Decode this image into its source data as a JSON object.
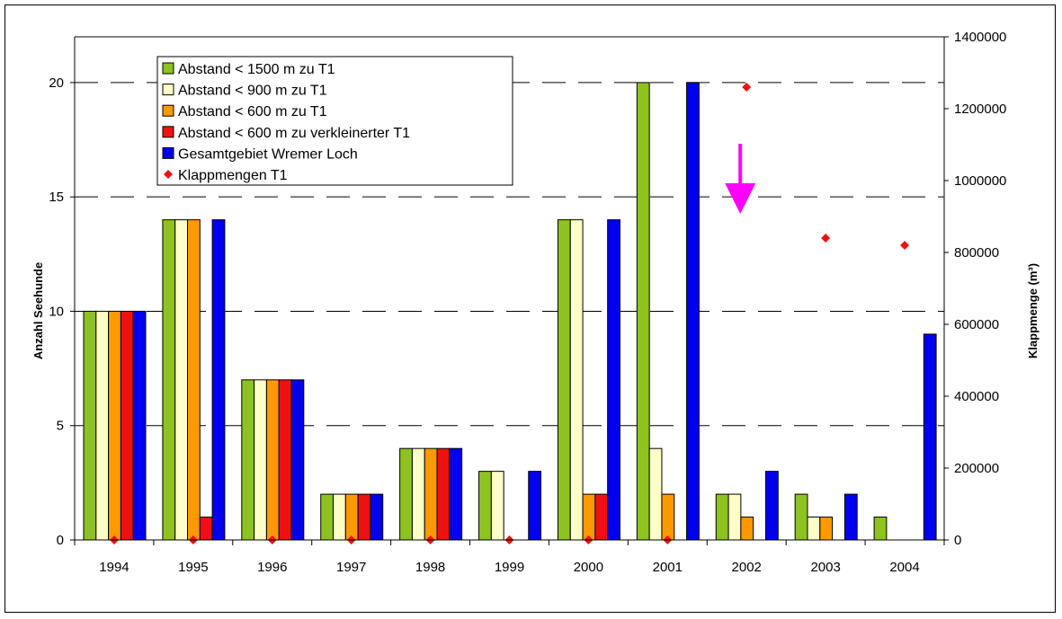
{
  "chart_data": {
    "type": "bar",
    "categories": [
      "1994",
      "1995",
      "1996",
      "1997",
      "1998",
      "1999",
      "2000",
      "2001",
      "2002",
      "2003",
      "2004"
    ],
    "series": [
      {
        "name": "Abstand < 1500 m zu T1",
        "color": "#8dc21f",
        "axis": "left",
        "kind": "bar",
        "values": [
          10,
          14,
          7,
          2,
          4,
          3,
          14,
          20,
          2,
          2,
          1
        ]
      },
      {
        "name": "Abstand < 900 m zu T1",
        "color": "#ffffc8",
        "axis": "left",
        "kind": "bar",
        "values": [
          10,
          14,
          7,
          2,
          4,
          3,
          14,
          4,
          2,
          1,
          0
        ]
      },
      {
        "name": "Abstand < 600 m zu T1",
        "color": "#ff9900",
        "axis": "left",
        "kind": "bar",
        "values": [
          10,
          14,
          7,
          2,
          4,
          0,
          2,
          2,
          1,
          1,
          0
        ]
      },
      {
        "name": "Abstand < 600 m zu verkleinerter T1",
        "color": "#ee1111",
        "axis": "left",
        "kind": "bar",
        "values": [
          10,
          1,
          7,
          2,
          4,
          0,
          2,
          0,
          0,
          0,
          0
        ]
      },
      {
        "name": "Gesamtgebiet Wremer Loch",
        "color": "#0000ee",
        "axis": "left",
        "kind": "bar",
        "values": [
          10,
          14,
          7,
          2,
          4,
          3,
          14,
          20,
          3,
          2,
          9
        ]
      },
      {
        "name": "Klappmengen T1",
        "color": "#ee1111",
        "axis": "right",
        "kind": "diamond",
        "values": [
          0,
          0,
          0,
          0,
          0,
          0,
          0,
          0,
          1260000,
          840000,
          820000
        ]
      }
    ],
    "ylabel": "Anzahl Seehunde",
    "y2label": "Klappmenge (m³)",
    "ylim": [
      0,
      22
    ],
    "y2lim": [
      0,
      1400000
    ],
    "yticks": [
      "0",
      "5",
      "10",
      "15",
      "20"
    ],
    "y2ticks": [
      "0",
      "200000",
      "400000",
      "600000",
      "800000",
      "1000000",
      "1200000",
      "1400000"
    ],
    "grid": "dashed horizontal",
    "legend_position": "top-left",
    "annotation": {
      "type": "arrow-down",
      "color": "#ff00ff",
      "category": "2002"
    }
  }
}
